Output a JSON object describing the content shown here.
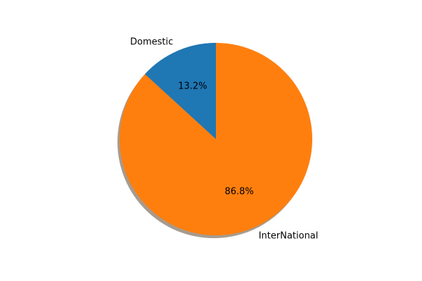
{
  "chart_data": {
    "type": "pie",
    "categories": [
      "Domestic",
      "InterNational"
    ],
    "values": [
      13.2,
      86.8
    ],
    "percent_labels": [
      "13.2%",
      "86.8%"
    ],
    "colors": [
      "#1f77b4",
      "#ff7f0e"
    ],
    "start_angle_deg": 90,
    "direction": "counterclockwise",
    "shadow": true,
    "title": "",
    "legend": "none"
  }
}
